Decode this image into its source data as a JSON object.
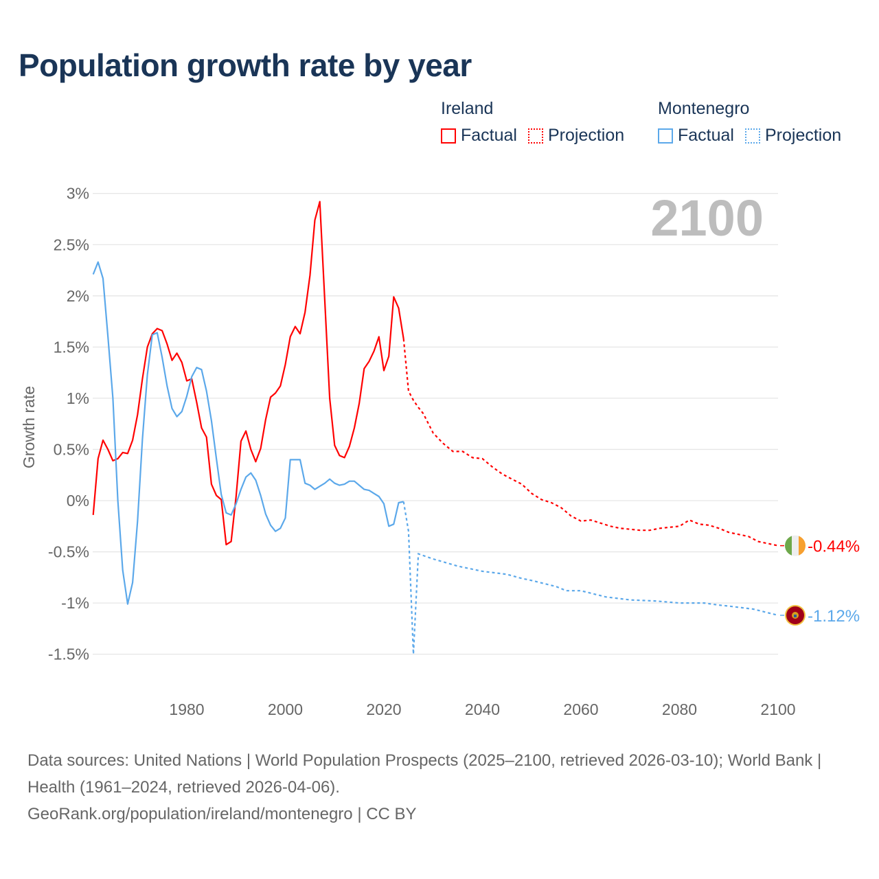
{
  "title": "Population growth rate by year",
  "legend": [
    {
      "country": "Ireland",
      "factual_label": "Factual",
      "projection_label": "Projection",
      "color": "#ff0000"
    },
    {
      "country": "Montenegro",
      "factual_label": "Factual",
      "projection_label": "Projection",
      "color": "#5ba8ea"
    }
  ],
  "footer": {
    "sources": "Data sources: United Nations | World Population Prospects (2025–2100, retrieved 2026-03-10); World Bank | Health (1961–2024, retrieved 2026-04-06).",
    "credit": "GeoRank.org/population/ireland/montenegro | CC BY"
  },
  "chart_data": {
    "type": "line",
    "title": "Population growth rate by year",
    "xlabel": "",
    "ylabel": "Growth rate",
    "year_label": "2100",
    "xlim": [
      1961,
      2100
    ],
    "ylim": [
      -1.5,
      3
    ],
    "yticks": [
      3,
      2.5,
      2,
      1.5,
      1,
      0.5,
      0,
      -0.5,
      -1,
      -1.5
    ],
    "ytick_labels": [
      "3%",
      "2.5%",
      "2%",
      "1.5%",
      "1%",
      "0.5%",
      "0%",
      "-0.5%",
      "-1%",
      "-1.5%"
    ],
    "xticks": [
      1980,
      2000,
      2020,
      2040,
      2060,
      2080,
      2100
    ],
    "xtick_labels": [
      "1980",
      "2000",
      "2020",
      "2040",
      "2060",
      "2080",
      "2100"
    ],
    "grid": true,
    "legend_position": "top-right",
    "series": [
      {
        "name": "Ireland",
        "color": "#ff0000",
        "end_label": "-0.44%",
        "flag": "ireland-flag",
        "factual": [
          [
            1961,
            -0.14
          ],
          [
            1962,
            0.41
          ],
          [
            1963,
            0.59
          ],
          [
            1964,
            0.5
          ],
          [
            1965,
            0.39
          ],
          [
            1966,
            0.41
          ],
          [
            1967,
            0.47
          ],
          [
            1968,
            0.46
          ],
          [
            1969,
            0.59
          ],
          [
            1970,
            0.84
          ],
          [
            1971,
            1.19
          ],
          [
            1972,
            1.5
          ],
          [
            1973,
            1.63
          ],
          [
            1974,
            1.68
          ],
          [
            1975,
            1.66
          ],
          [
            1976,
            1.53
          ],
          [
            1977,
            1.37
          ],
          [
            1978,
            1.44
          ],
          [
            1979,
            1.35
          ],
          [
            1980,
            1.17
          ],
          [
            1981,
            1.19
          ],
          [
            1982,
            0.96
          ],
          [
            1983,
            0.71
          ],
          [
            1984,
            0.62
          ],
          [
            1985,
            0.16
          ],
          [
            1986,
            0.05
          ],
          [
            1987,
            0.01
          ],
          [
            1988,
            -0.43
          ],
          [
            1989,
            -0.4
          ],
          [
            1990,
            0.04
          ],
          [
            1991,
            0.58
          ],
          [
            1992,
            0.68
          ],
          [
            1993,
            0.5
          ],
          [
            1994,
            0.38
          ],
          [
            1995,
            0.51
          ],
          [
            1996,
            0.79
          ],
          [
            1997,
            1.01
          ],
          [
            1998,
            1.05
          ],
          [
            1999,
            1.12
          ],
          [
            2000,
            1.33
          ],
          [
            2001,
            1.6
          ],
          [
            2002,
            1.7
          ],
          [
            2003,
            1.63
          ],
          [
            2004,
            1.84
          ],
          [
            2005,
            2.2
          ],
          [
            2006,
            2.74
          ],
          [
            2007,
            2.92
          ],
          [
            2008,
            1.96
          ],
          [
            2009,
            1.0
          ],
          [
            2010,
            0.54
          ],
          [
            2011,
            0.44
          ],
          [
            2012,
            0.42
          ],
          [
            2013,
            0.53
          ],
          [
            2014,
            0.71
          ],
          [
            2015,
            0.95
          ],
          [
            2016,
            1.29
          ],
          [
            2017,
            1.36
          ],
          [
            2018,
            1.46
          ],
          [
            2019,
            1.6
          ],
          [
            2020,
            1.27
          ],
          [
            2021,
            1.41
          ],
          [
            2022,
            1.99
          ],
          [
            2023,
            1.88
          ],
          [
            2024,
            1.58
          ]
        ],
        "projection": [
          [
            2024,
            1.58
          ],
          [
            2025,
            1.07
          ],
          [
            2026,
            0.98
          ],
          [
            2027,
            0.91
          ],
          [
            2028,
            0.85
          ],
          [
            2030,
            0.66
          ],
          [
            2032,
            0.56
          ],
          [
            2034,
            0.48
          ],
          [
            2036,
            0.48
          ],
          [
            2038,
            0.42
          ],
          [
            2040,
            0.41
          ],
          [
            2042,
            0.33
          ],
          [
            2044,
            0.26
          ],
          [
            2046,
            0.21
          ],
          [
            2048,
            0.16
          ],
          [
            2050,
            0.07
          ],
          [
            2052,
            0.01
          ],
          [
            2054,
            -0.02
          ],
          [
            2056,
            -0.07
          ],
          [
            2058,
            -0.15
          ],
          [
            2060,
            -0.2
          ],
          [
            2062,
            -0.19
          ],
          [
            2064,
            -0.22
          ],
          [
            2066,
            -0.25
          ],
          [
            2068,
            -0.27
          ],
          [
            2070,
            -0.28
          ],
          [
            2072,
            -0.29
          ],
          [
            2074,
            -0.29
          ],
          [
            2076,
            -0.27
          ],
          [
            2078,
            -0.26
          ],
          [
            2080,
            -0.25
          ],
          [
            2082,
            -0.19
          ],
          [
            2084,
            -0.23
          ],
          [
            2086,
            -0.24
          ],
          [
            2088,
            -0.27
          ],
          [
            2090,
            -0.31
          ],
          [
            2092,
            -0.33
          ],
          [
            2094,
            -0.35
          ],
          [
            2096,
            -0.4
          ],
          [
            2098,
            -0.42
          ],
          [
            2100,
            -0.44
          ]
        ]
      },
      {
        "name": "Montenegro",
        "color": "#5ba8ea",
        "end_label": "-1.12%",
        "flag": "montenegro-flag",
        "factual": [
          [
            1961,
            2.21
          ],
          [
            1962,
            2.33
          ],
          [
            1963,
            2.17
          ],
          [
            1964,
            1.6
          ],
          [
            1965,
            1.0
          ],
          [
            1966,
            0.0
          ],
          [
            1967,
            -0.68
          ],
          [
            1968,
            -1.01
          ],
          [
            1969,
            -0.8
          ],
          [
            1970,
            -0.2
          ],
          [
            1971,
            0.6
          ],
          [
            1972,
            1.23
          ],
          [
            1973,
            1.62
          ],
          [
            1974,
            1.64
          ],
          [
            1975,
            1.4
          ],
          [
            1976,
            1.12
          ],
          [
            1977,
            0.9
          ],
          [
            1978,
            0.82
          ],
          [
            1979,
            0.87
          ],
          [
            1980,
            1.02
          ],
          [
            1981,
            1.21
          ],
          [
            1982,
            1.3
          ],
          [
            1983,
            1.28
          ],
          [
            1984,
            1.07
          ],
          [
            1985,
            0.78
          ],
          [
            1986,
            0.41
          ],
          [
            1987,
            0.06
          ],
          [
            1988,
            -0.12
          ],
          [
            1989,
            -0.14
          ],
          [
            1990,
            -0.03
          ],
          [
            1991,
            0.11
          ],
          [
            1992,
            0.23
          ],
          [
            1993,
            0.27
          ],
          [
            1994,
            0.2
          ],
          [
            1995,
            0.05
          ],
          [
            1996,
            -0.13
          ],
          [
            1997,
            -0.24
          ],
          [
            1998,
            -0.3
          ],
          [
            1999,
            -0.27
          ],
          [
            2000,
            -0.17
          ],
          [
            2001,
            0.4
          ],
          [
            2002,
            0.4
          ],
          [
            2003,
            0.4
          ],
          [
            2004,
            0.17
          ],
          [
            2005,
            0.15
          ],
          [
            2006,
            0.11
          ],
          [
            2007,
            0.14
          ],
          [
            2008,
            0.17
          ],
          [
            2009,
            0.21
          ],
          [
            2010,
            0.17
          ],
          [
            2011,
            0.15
          ],
          [
            2012,
            0.16
          ],
          [
            2013,
            0.19
          ],
          [
            2014,
            0.19
          ],
          [
            2015,
            0.15
          ],
          [
            2016,
            0.11
          ],
          [
            2017,
            0.1
          ],
          [
            2018,
            0.07
          ],
          [
            2019,
            0.04
          ],
          [
            2020,
            -0.03
          ],
          [
            2021,
            -0.25
          ],
          [
            2022,
            -0.23
          ],
          [
            2023,
            -0.02
          ],
          [
            2024,
            -0.01
          ]
        ],
        "projection": [
          [
            2024,
            -0.01
          ],
          [
            2025,
            -0.3
          ],
          [
            2026,
            -1.5
          ],
          [
            2027,
            -0.52
          ],
          [
            2030,
            -0.57
          ],
          [
            2035,
            -0.64
          ],
          [
            2040,
            -0.69
          ],
          [
            2045,
            -0.72
          ],
          [
            2048,
            -0.76
          ],
          [
            2050,
            -0.78
          ],
          [
            2055,
            -0.84
          ],
          [
            2057,
            -0.88
          ],
          [
            2060,
            -0.88
          ],
          [
            2065,
            -0.94
          ],
          [
            2070,
            -0.97
          ],
          [
            2075,
            -0.98
          ],
          [
            2080,
            -1.0
          ],
          [
            2085,
            -1.0
          ],
          [
            2088,
            -1.02
          ],
          [
            2090,
            -1.03
          ],
          [
            2095,
            -1.06
          ],
          [
            2100,
            -1.12
          ]
        ]
      }
    ]
  }
}
